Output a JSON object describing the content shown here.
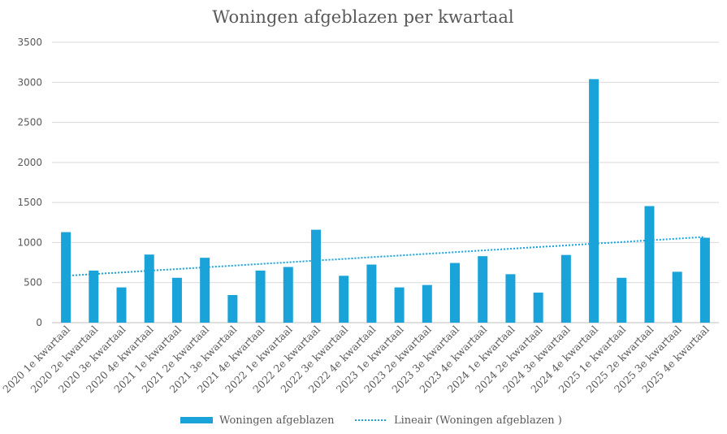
{
  "chart_data": {
    "type": "bar",
    "title": "Woningen afgeblazen per kwartaal",
    "xlabel": "",
    "ylabel": "",
    "ylim": [
      0,
      3500
    ],
    "yticks": [
      0,
      500,
      1000,
      1500,
      2000,
      2500,
      3000,
      3500
    ],
    "grid": true,
    "legend_position": "bottom",
    "categories": [
      "2020 1e kwartaal",
      "2020 2e kwartaal",
      "2020 3e kwartaal",
      "2020 4e kwartaal",
      "2021 1e kwartaal",
      "2021 2e kwartaal",
      "2021 3e kwartaal",
      "2021 4e kwartaal",
      "2022 1e kwartaal",
      "2022 2e kwartaal",
      "2022 3e kwartaal",
      "2022 4e kwartaal",
      "2023 1e kwartaal",
      "2023 2e kwartaal",
      "2023 3e kwartaal",
      "2023 4e kwartaal",
      "2024 1e kwartaal",
      "2024 2e kwartaal",
      "2024 3e kwartaal",
      "2024 4e kwartaal",
      "2025 1e kwartaal",
      "2025 2e kwartaal",
      "2025 3e kwartaal",
      "2025 4e kwartaal"
    ],
    "series": [
      {
        "name": "Woningen afgeblazen",
        "color": "#1aa3d9",
        "values": [
          1130,
          650,
          440,
          850,
          560,
          810,
          345,
          650,
          695,
          1160,
          585,
          725,
          440,
          470,
          745,
          830,
          605,
          375,
          845,
          3040,
          560,
          1455,
          635,
          1060
        ]
      }
    ],
    "trendline": {
      "name": "Lineair (Woningen afgeblazen )",
      "type": "linear",
      "color": "#1aa3d9",
      "start": 585,
      "end": 1070
    }
  }
}
